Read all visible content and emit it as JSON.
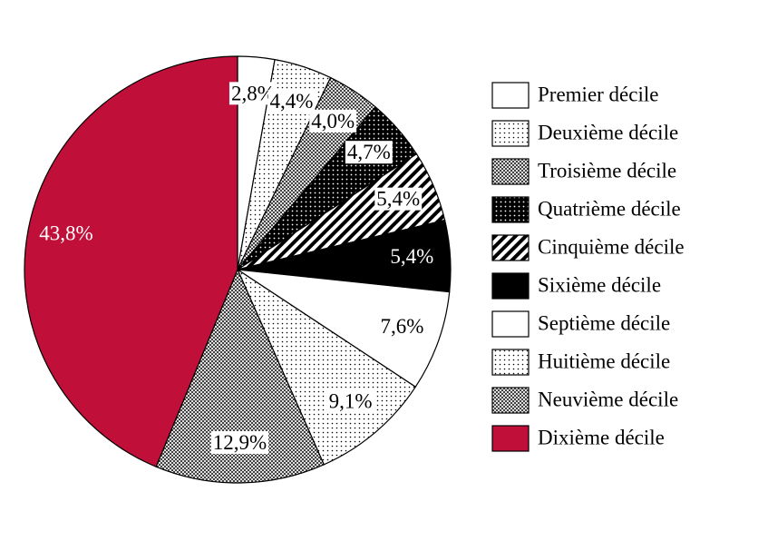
{
  "chart_data": {
    "type": "pie",
    "categories": [
      "Premier décile",
      "Deuxième décile",
      "Troisième décile",
      "Quatrième décile",
      "Cinquième décile",
      "Sixième décile",
      "Septième décile",
      "Huitième décile",
      "Neuvième décile",
      "Dixième décile"
    ],
    "values": [
      2.8,
      4.4,
      4.0,
      4.7,
      5.4,
      5.4,
      7.6,
      9.1,
      12.9,
      43.8
    ],
    "value_labels": [
      "2,8%",
      "4,4%",
      "4,0%",
      "4,7%",
      "5,4%",
      "5,4%",
      "7,6%",
      "9,1%",
      "12,9%",
      "43,8%"
    ],
    "patterns": [
      "none",
      "dots",
      "crosshatch",
      "dense-dots",
      "stripes",
      "none",
      "none",
      "dots",
      "crosshatch",
      "none"
    ],
    "colors": [
      "#ffffff",
      "#ffffff",
      "#ffffff",
      "#000000",
      "#ffffff",
      "#000000",
      "#ffffff",
      "#ffffff",
      "#ffffff",
      "#c0103a"
    ],
    "legend": "right"
  }
}
